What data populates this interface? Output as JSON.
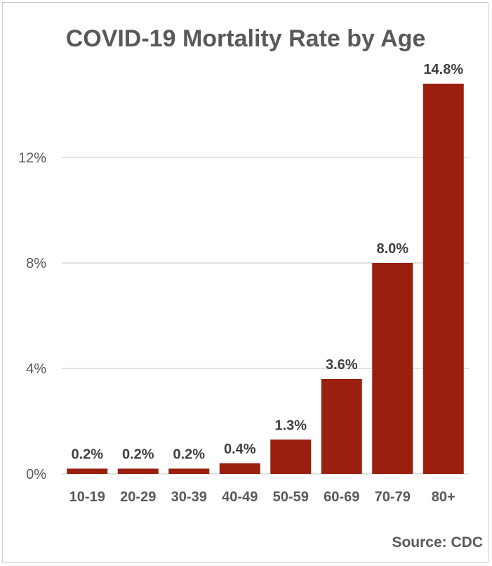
{
  "chart_data": {
    "type": "bar",
    "title": "COVID-19 Mortality Rate by Age",
    "source": "Source: CDC",
    "categories": [
      "10-19",
      "20-29",
      "30-39",
      "40-49",
      "50-59",
      "60-69",
      "70-79",
      "80+"
    ],
    "values": [
      0.2,
      0.2,
      0.2,
      0.4,
      1.3,
      3.6,
      8.0,
      14.8
    ],
    "value_labels": [
      "0.2%",
      "0.2%",
      "0.2%",
      "0.4%",
      "1.3%",
      "3.6%",
      "8.0%",
      "14.8%"
    ],
    "yticks": [
      0,
      4,
      8,
      12
    ],
    "ytick_labels": [
      "0%",
      "4%",
      "8%",
      "12%"
    ],
    "ylim": [
      0,
      14.8
    ],
    "xlabel": "",
    "ylabel": "",
    "grid": true,
    "legend": "none",
    "bar_color": "#9a1f0e",
    "grid_color": "#d9d9d9"
  }
}
